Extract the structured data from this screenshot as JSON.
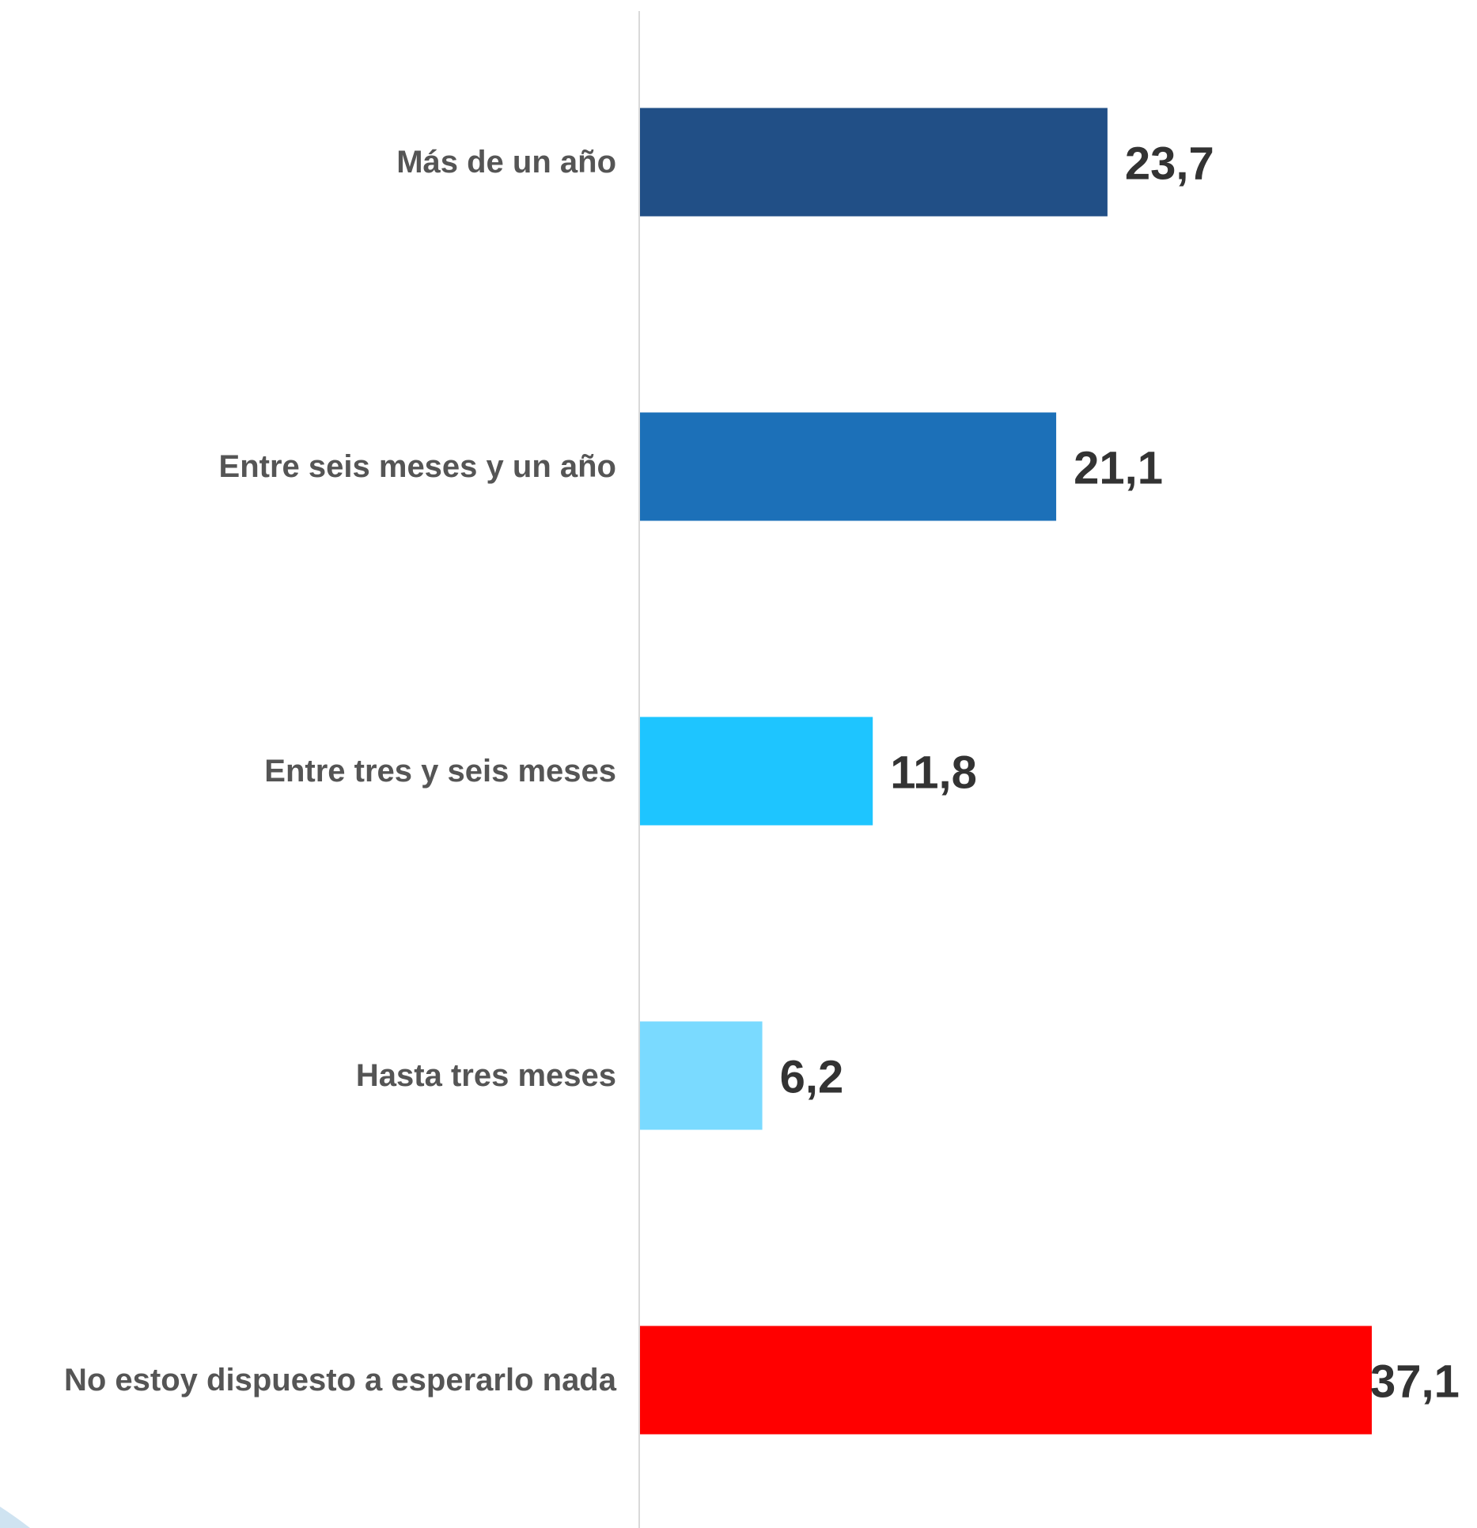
{
  "chart_data": {
    "type": "bar",
    "orientation": "horizontal",
    "categories": [
      "Más de un año",
      "Entre seis meses y un año",
      "Entre tres y seis meses",
      "Hasta tres meses",
      "No estoy dispuesto a esperarlo nada"
    ],
    "values": [
      23.7,
      21.1,
      11.8,
      6.2,
      37.1
    ],
    "value_labels": [
      "23,7",
      "21,1",
      "11,8",
      "6,2",
      "37,1"
    ],
    "colors": [
      "#214f86",
      "#1c70b8",
      "#1ec5ff",
      "#7adaff",
      "#ff0000"
    ],
    "title": "",
    "xlabel": "",
    "ylabel": "",
    "xlim": [
      0,
      37.1
    ],
    "grid": false,
    "legend": "none"
  }
}
